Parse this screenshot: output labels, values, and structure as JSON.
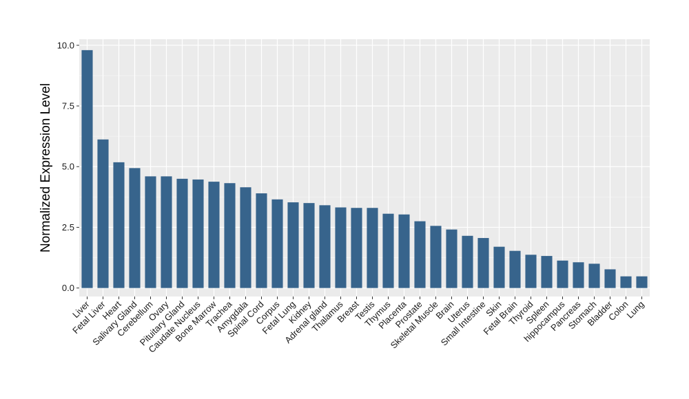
{
  "chart_data": {
    "type": "bar",
    "title": "",
    "xlabel": "",
    "ylabel": "Normalized Expression Level",
    "ylim": [
      -0.35,
      10.25
    ],
    "yticks": [
      0.0,
      2.5,
      5.0,
      7.5,
      10.0
    ],
    "ytick_labels": [
      "0.0",
      "2.5",
      "5.0",
      "7.5",
      "10.0"
    ],
    "grid": true,
    "legend": "none",
    "categories": [
      "Liver",
      "Fetal Liver",
      "Heart",
      "Salivary Gland",
      "Cerebellum",
      "Ovary",
      "Pituitary Gland",
      "Caudate Nucleus",
      "Bone Marrow",
      "Trachea",
      "Amygdala",
      "Spinal Cord",
      "Corpus",
      "Fetal Lung",
      "Kidney",
      "Adrenal gland",
      "Thalamus",
      "Breast",
      "Testis",
      "Thymus",
      "Placenta",
      "Prostate",
      "Skeletal Muscle",
      "Brain",
      "Uterus",
      "Small Intestine",
      "Skin",
      "Fetal Brain",
      "Thyroid",
      "Spleen",
      "hippocampus",
      "Pancreas",
      "Stomach",
      "Bladder",
      "Colon",
      "Lung"
    ],
    "values": [
      9.8,
      6.12,
      5.18,
      4.94,
      4.6,
      4.6,
      4.5,
      4.47,
      4.38,
      4.32,
      4.15,
      3.9,
      3.65,
      3.53,
      3.5,
      3.41,
      3.32,
      3.3,
      3.3,
      3.06,
      3.03,
      2.75,
      2.56,
      2.41,
      2.15,
      2.06,
      1.7,
      1.53,
      1.37,
      1.32,
      1.13,
      1.06,
      1.0,
      0.77,
      0.48,
      0.48
    ],
    "colors": {
      "bar": "#37648c",
      "panel": "#ebebeb",
      "grid_major": "#ffffff",
      "grid_minor": "#f5f5f5"
    }
  }
}
